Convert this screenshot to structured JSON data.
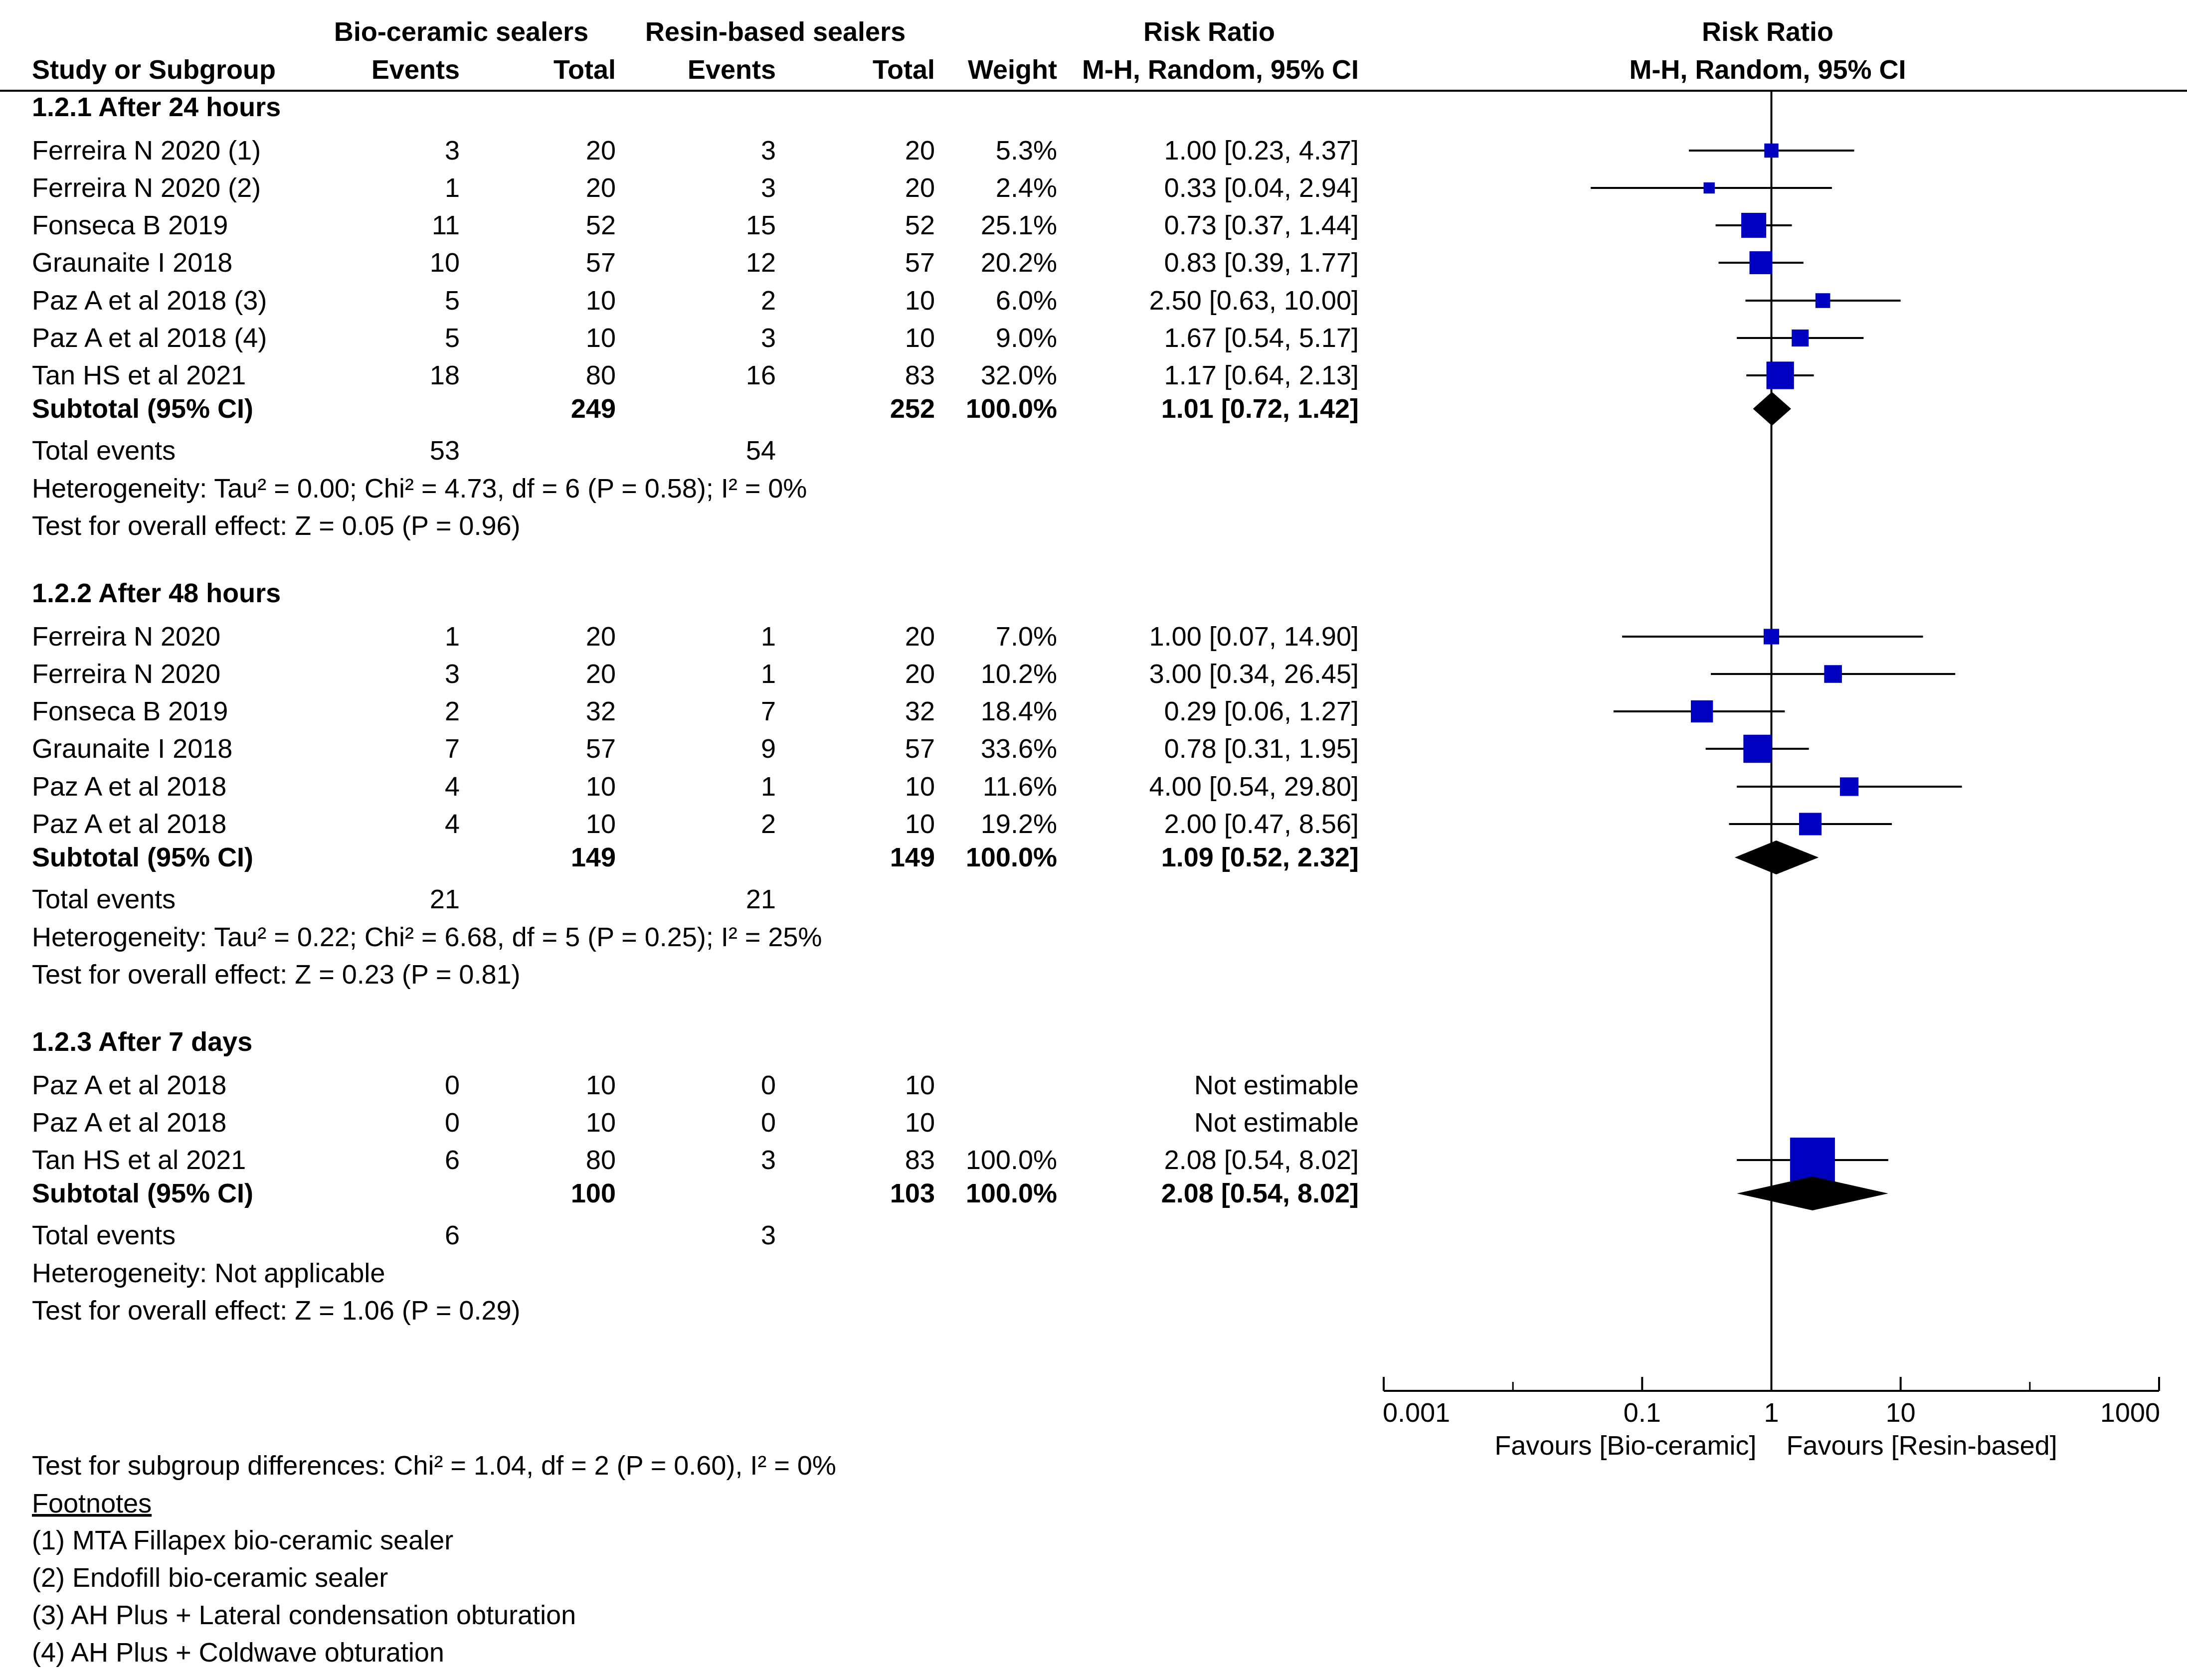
{
  "header": {
    "group1": "Bio-ceramic sealers",
    "group2": "Resin-based sealers",
    "rr_text": "Risk Ratio",
    "rr_text_sub": "M-H, Random, 95% CI",
    "rr_plot": "Risk Ratio",
    "rr_plot_sub": "M-H, Random, 95% CI",
    "study_col": "Study or Subgroup",
    "events1": "Events",
    "total1": "Total",
    "events2": "Events",
    "total2": "Total",
    "weight": "Weight"
  },
  "subgroups": [
    {
      "title": "1.2.1 After 24 hours",
      "studies": [
        {
          "name": "Ferreira N 2020 (1)",
          "e1": "3",
          "t1": "20",
          "e2": "3",
          "t2": "20",
          "weight": "5.3%",
          "ci_text": "1.00 [0.23, 4.37]",
          "rr": 1.0,
          "lo": 0.23,
          "hi": 4.37,
          "w": 5.3
        },
        {
          "name": "Ferreira N 2020 (2)",
          "e1": "1",
          "t1": "20",
          "e2": "3",
          "t2": "20",
          "weight": "2.4%",
          "ci_text": "0.33 [0.04, 2.94]",
          "rr": 0.33,
          "lo": 0.04,
          "hi": 2.94,
          "w": 2.4
        },
        {
          "name": "Fonseca B 2019",
          "e1": "11",
          "t1": "52",
          "e2": "15",
          "t2": "52",
          "weight": "25.1%",
          "ci_text": "0.73 [0.37, 1.44]",
          "rr": 0.73,
          "lo": 0.37,
          "hi": 1.44,
          "w": 25.1
        },
        {
          "name": "Graunaite I 2018",
          "e1": "10",
          "t1": "57",
          "e2": "12",
          "t2": "57",
          "weight": "20.2%",
          "ci_text": "0.83 [0.39, 1.77]",
          "rr": 0.83,
          "lo": 0.39,
          "hi": 1.77,
          "w": 20.2
        },
        {
          "name": "Paz A et al 2018 (3)",
          "e1": "5",
          "t1": "10",
          "e2": "2",
          "t2": "10",
          "weight": "6.0%",
          "ci_text": "2.50 [0.63, 10.00]",
          "rr": 2.5,
          "lo": 0.63,
          "hi": 10.0,
          "w": 6.0
        },
        {
          "name": "Paz A et al 2018 (4)",
          "e1": "5",
          "t1": "10",
          "e2": "3",
          "t2": "10",
          "weight": "9.0%",
          "ci_text": "1.67 [0.54, 5.17]",
          "rr": 1.67,
          "lo": 0.54,
          "hi": 5.17,
          "w": 9.0
        },
        {
          "name": "Tan HS et al 2021",
          "e1": "18",
          "t1": "80",
          "e2": "16",
          "t2": "83",
          "weight": "32.0%",
          "ci_text": "1.17 [0.64, 2.13]",
          "rr": 1.17,
          "lo": 0.64,
          "hi": 2.13,
          "w": 32.0
        }
      ],
      "subtotal": {
        "label": "Subtotal (95% CI)",
        "t1": "249",
        "t2": "252",
        "weight": "100.0%",
        "ci_text": "1.01 [0.72, 1.42]",
        "rr": 1.01,
        "lo": 0.72,
        "hi": 1.42
      },
      "total_events": {
        "label": "Total events",
        "e1": "53",
        "e2": "54"
      },
      "heterogeneity": "Heterogeneity: Tau² = 0.00; Chi² = 4.73, df = 6 (P = 0.58); I² = 0%",
      "overall": "Test for overall effect: Z = 0.05 (P = 0.96)"
    },
    {
      "title": "1.2.2 After 48 hours",
      "studies": [
        {
          "name": "Ferreira N 2020",
          "e1": "1",
          "t1": "20",
          "e2": "1",
          "t2": "20",
          "weight": "7.0%",
          "ci_text": "1.00 [0.07, 14.90]",
          "rr": 1.0,
          "lo": 0.07,
          "hi": 14.9,
          "w": 7.0
        },
        {
          "name": "Ferreira N 2020",
          "e1": "3",
          "t1": "20",
          "e2": "1",
          "t2": "20",
          "weight": "10.2%",
          "ci_text": "3.00 [0.34, 26.45]",
          "rr": 3.0,
          "lo": 0.34,
          "hi": 26.45,
          "w": 10.2
        },
        {
          "name": "Fonseca B 2019",
          "e1": "2",
          "t1": "32",
          "e2": "7",
          "t2": "32",
          "weight": "18.4%",
          "ci_text": "0.29 [0.06, 1.27]",
          "rr": 0.29,
          "lo": 0.06,
          "hi": 1.27,
          "w": 18.4
        },
        {
          "name": "Graunaite I 2018",
          "e1": "7",
          "t1": "57",
          "e2": "9",
          "t2": "57",
          "weight": "33.6%",
          "ci_text": "0.78 [0.31, 1.95]",
          "rr": 0.78,
          "lo": 0.31,
          "hi": 1.95,
          "w": 33.6
        },
        {
          "name": "Paz A et al 2018",
          "e1": "4",
          "t1": "10",
          "e2": "1",
          "t2": "10",
          "weight": "11.6%",
          "ci_text": "4.00 [0.54, 29.80]",
          "rr": 4.0,
          "lo": 0.54,
          "hi": 29.8,
          "w": 11.6
        },
        {
          "name": "Paz A et al 2018",
          "e1": "4",
          "t1": "10",
          "e2": "2",
          "t2": "10",
          "weight": "19.2%",
          "ci_text": "2.00 [0.47, 8.56]",
          "rr": 2.0,
          "lo": 0.47,
          "hi": 8.56,
          "w": 19.2
        }
      ],
      "subtotal": {
        "label": "Subtotal (95% CI)",
        "t1": "149",
        "t2": "149",
        "weight": "100.0%",
        "ci_text": "1.09 [0.52, 2.32]",
        "rr": 1.09,
        "lo": 0.52,
        "hi": 2.32
      },
      "total_events": {
        "label": "Total events",
        "e1": "21",
        "e2": "21"
      },
      "heterogeneity": "Heterogeneity: Tau² = 0.22; Chi² = 6.68, df = 5 (P = 0.25); I² = 25%",
      "overall": "Test for overall effect: Z = 0.23 (P = 0.81)"
    },
    {
      "title": "1.2.3 After 7 days",
      "studies": [
        {
          "name": "Paz A et al 2018",
          "e1": "0",
          "t1": "10",
          "e2": "0",
          "t2": "10",
          "weight": "",
          "ci_text": "Not estimable",
          "rr": null,
          "lo": null,
          "hi": null,
          "w": 0
        },
        {
          "name": "Paz A et al 2018",
          "e1": "0",
          "t1": "10",
          "e2": "0",
          "t2": "10",
          "weight": "",
          "ci_text": "Not estimable",
          "rr": null,
          "lo": null,
          "hi": null,
          "w": 0
        },
        {
          "name": "Tan HS et al 2021",
          "e1": "6",
          "t1": "80",
          "e2": "3",
          "t2": "83",
          "weight": "100.0%",
          "ci_text": "2.08 [0.54, 8.02]",
          "rr": 2.08,
          "lo": 0.54,
          "hi": 8.02,
          "w": 100.0
        }
      ],
      "subtotal": {
        "label": "Subtotal (95% CI)",
        "t1": "100",
        "t2": "103",
        "weight": "100.0%",
        "ci_text": "2.08 [0.54, 8.02]",
        "rr": 2.08,
        "lo": 0.54,
        "hi": 8.02
      },
      "total_events": {
        "label": "Total events",
        "e1": "6",
        "e2": "3"
      },
      "heterogeneity": "Heterogeneity: Not applicable",
      "overall": "Test for overall effect: Z = 1.06 (P = 0.29)"
    }
  ],
  "subgroup_differences": "Test for subgroup differences: Chi² = 1.04, df = 2 (P = 0.60), I² = 0%",
  "footnotes": {
    "title": "Footnotes",
    "items": [
      "(1) MTA Fillapex bio-ceramic sealer",
      "(2) Endofill bio-ceramic sealer",
      "(3) AH Plus + Lateral condensation obturation",
      "(4) AH Plus + Coldwave obturation"
    ]
  },
  "axis": {
    "ticks": [
      {
        "value": 0.001,
        "label": "0.001"
      },
      {
        "value": 0.1,
        "label": "0.1"
      },
      {
        "value": 1,
        "label": "1"
      },
      {
        "value": 10,
        "label": "10"
      },
      {
        "value": 1000,
        "label": "1000"
      }
    ],
    "min": 0.001,
    "max": 1000,
    "scale": "log",
    "favours_left": "Favours [Bio-ceramic]",
    "favours_right": "Favours [Resin-based]"
  },
  "chart_data": {
    "type": "forest",
    "title": "Risk Ratio M-H, Random, 95% CI",
    "xscale": "log",
    "xlim": [
      0.001,
      1000
    ],
    "null_value": 1,
    "xlabel_left": "Favours [Bio-ceramic]",
    "xlabel_right": "Favours [Resin-based]",
    "subgroups": [
      "1.2.1 After 24 hours",
      "1.2.2 After 48 hours",
      "1.2.3 After 7 days"
    ]
  },
  "colors": {
    "study_marker": "#0000c0",
    "summary_diamond": "#000000",
    "line": "#000000"
  }
}
